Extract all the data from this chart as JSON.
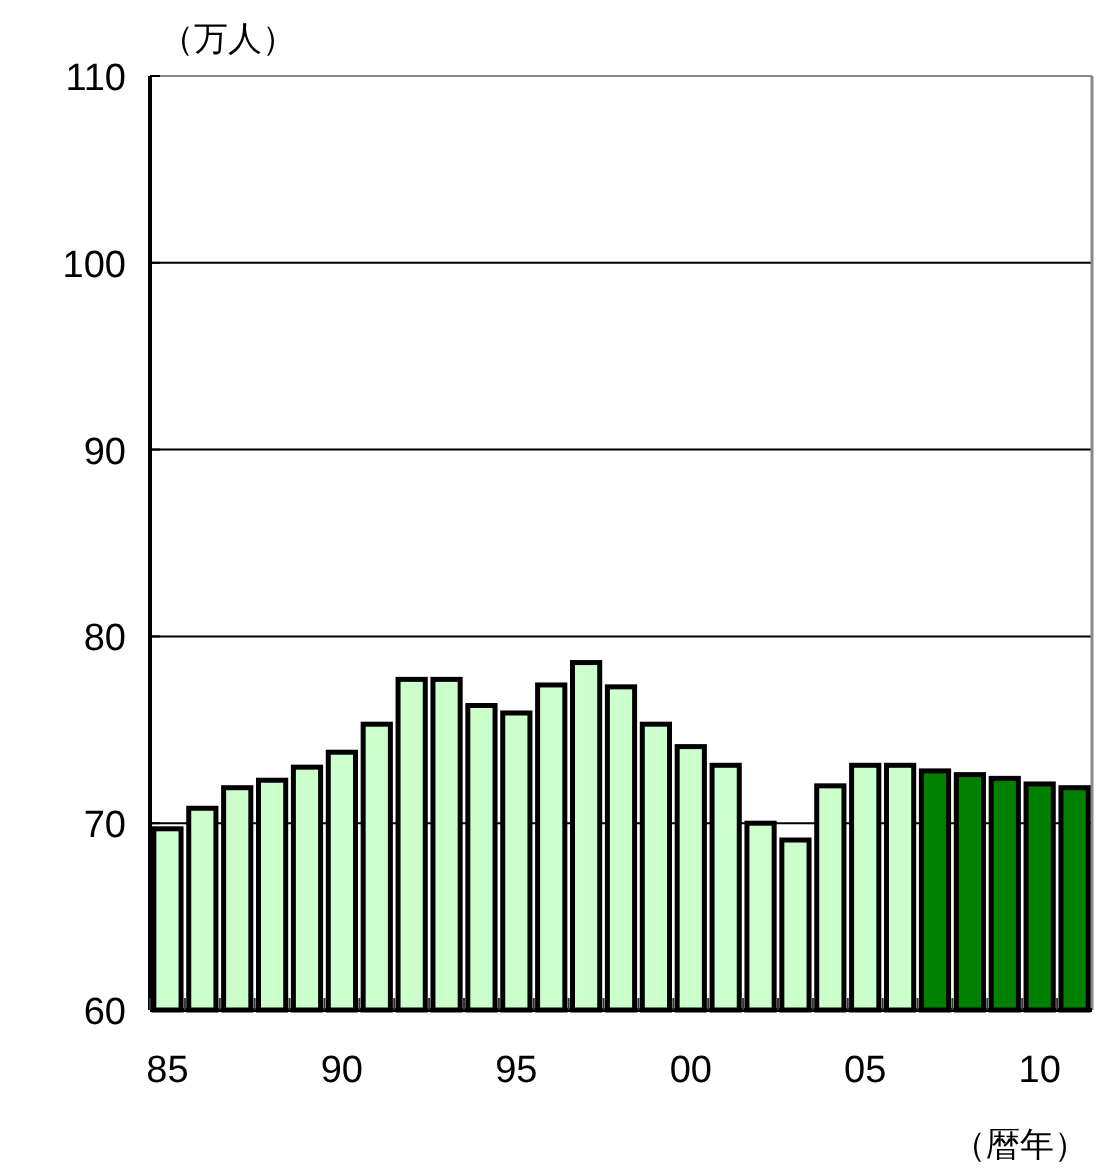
{
  "chart_data": {
    "type": "bar",
    "ylabel": "（万人）",
    "xlabel": "（暦年）",
    "categories": [
      "85",
      null,
      null,
      null,
      null,
      "90",
      null,
      null,
      null,
      null,
      "95",
      null,
      null,
      null,
      null,
      "00",
      null,
      null,
      null,
      null,
      "05",
      null,
      null,
      null,
      null,
      "10",
      null
    ],
    "values": [
      69.7,
      70.8,
      71.9,
      72.3,
      73.0,
      73.8,
      75.3,
      77.7,
      77.7,
      76.3,
      75.9,
      77.4,
      78.6,
      77.3,
      75.3,
      74.1,
      73.1,
      70.0,
      69.1,
      72.0,
      73.1,
      73.1,
      72.8,
      72.6,
      72.4,
      72.1,
      71.9
    ],
    "colors": [
      "#ccffcc",
      "#ccffcc",
      "#ccffcc",
      "#ccffcc",
      "#ccffcc",
      "#ccffcc",
      "#ccffcc",
      "#ccffcc",
      "#ccffcc",
      "#ccffcc",
      "#ccffcc",
      "#ccffcc",
      "#ccffcc",
      "#ccffcc",
      "#ccffcc",
      "#ccffcc",
      "#ccffcc",
      "#ccffcc",
      "#ccffcc",
      "#ccffcc",
      "#ccffcc",
      "#ccffcc",
      "#008000",
      "#008000",
      "#008000",
      "#008000",
      "#008000"
    ],
    "ylim": [
      60,
      110
    ],
    "yticks": [
      60,
      70,
      80,
      90,
      100,
      110
    ],
    "grid": "y"
  }
}
